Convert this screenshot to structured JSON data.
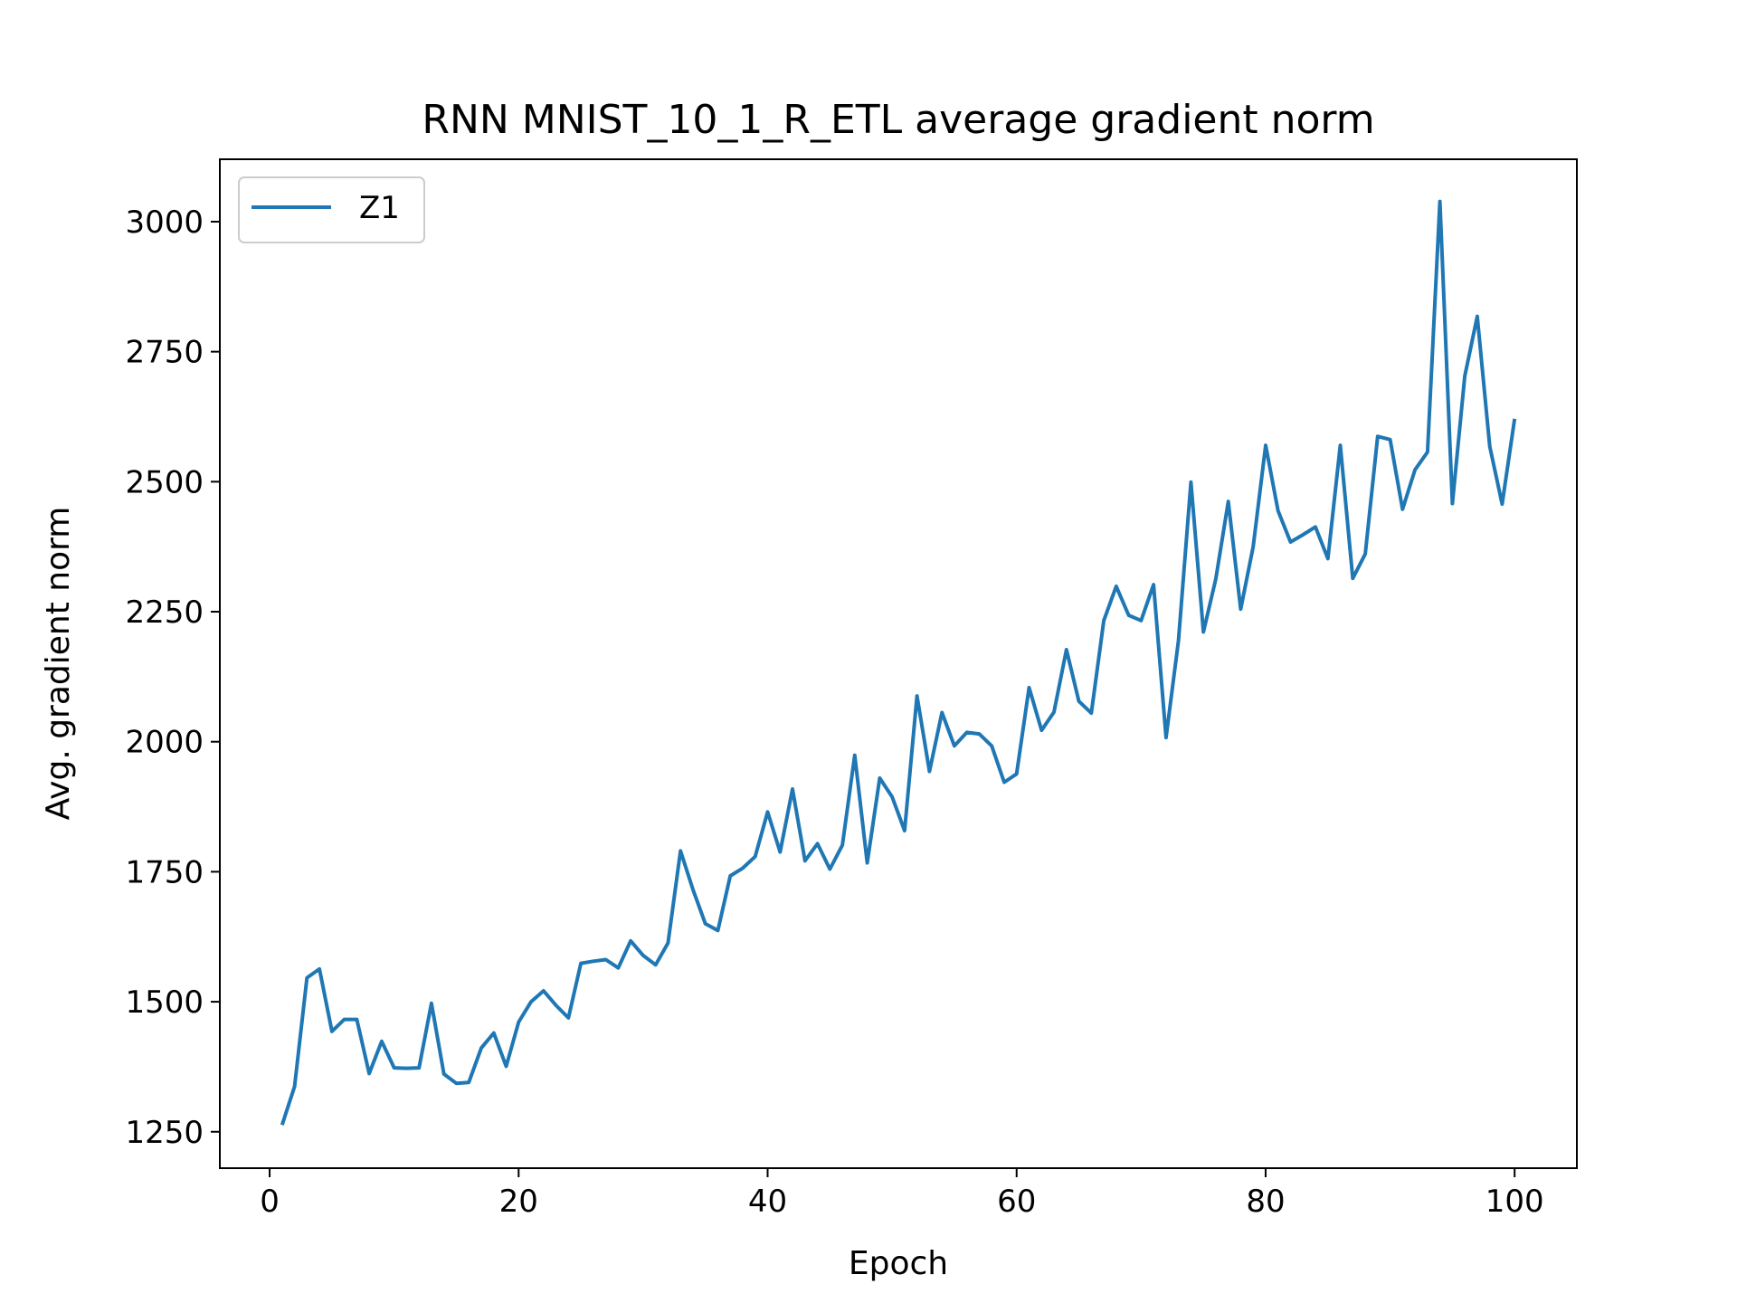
{
  "chart_data": {
    "type": "line",
    "title": "RNN MNIST_10_1_R_ETL average gradient norm",
    "xlabel": "Epoch",
    "ylabel": "Avg. gradient norm",
    "xlim": [
      -4,
      105
    ],
    "ylim": [
      1180,
      3120
    ],
    "xticks": [
      0,
      20,
      40,
      60,
      80,
      100
    ],
    "yticks": [
      1250,
      1500,
      1750,
      2000,
      2250,
      2500,
      2750,
      3000
    ],
    "grid": false,
    "legend_position": "upper-left",
    "series": [
      {
        "name": "Z1",
        "color": "#1f77b4",
        "x": [
          1,
          2,
          3,
          4,
          5,
          6,
          7,
          8,
          9,
          10,
          11,
          12,
          13,
          14,
          15,
          16,
          17,
          18,
          19,
          20,
          21,
          22,
          23,
          24,
          25,
          26,
          27,
          28,
          29,
          30,
          31,
          32,
          33,
          34,
          35,
          36,
          37,
          38,
          39,
          40,
          41,
          42,
          43,
          44,
          45,
          46,
          47,
          48,
          49,
          50,
          51,
          52,
          53,
          54,
          55,
          56,
          57,
          58,
          59,
          60,
          61,
          62,
          63,
          64,
          65,
          66,
          67,
          68,
          69,
          70,
          71,
          72,
          73,
          74,
          75,
          76,
          77,
          78,
          79,
          80,
          81,
          82,
          83,
          84,
          85,
          86,
          87,
          88,
          89,
          90,
          91,
          92,
          93,
          94,
          95,
          96,
          97,
          98,
          99,
          100
        ],
        "values": [
          1263,
          1337,
          1546,
          1563,
          1443,
          1466,
          1466,
          1362,
          1424,
          1373,
          1372,
          1373,
          1497,
          1361,
          1343,
          1345,
          1411,
          1440,
          1376,
          1461,
          1500,
          1521,
          1493,
          1469,
          1574,
          1578,
          1581,
          1565,
          1617,
          1589,
          1571,
          1613,
          1790,
          1716,
          1650,
          1637,
          1742,
          1757,
          1779,
          1865,
          1788,
          1909,
          1771,
          1804,
          1755,
          1801,
          1974,
          1767,
          1930,
          1894,
          1829,
          2088,
          1943,
          2056,
          1992,
          2018,
          2015,
          1992,
          1922,
          1938,
          2104,
          2022,
          2057,
          2177,
          2078,
          2055,
          2233,
          2299,
          2243,
          2233,
          2302,
          2008,
          2194,
          2499,
          2211,
          2313,
          2462,
          2255,
          2375,
          2570,
          2444,
          2384,
          2398,
          2413,
          2352,
          2570,
          2314,
          2361,
          2587,
          2581,
          2447,
          2523,
          2557,
          3039,
          2458,
          2703,
          2818,
          2568,
          2457,
          2621
        ]
      }
    ]
  }
}
